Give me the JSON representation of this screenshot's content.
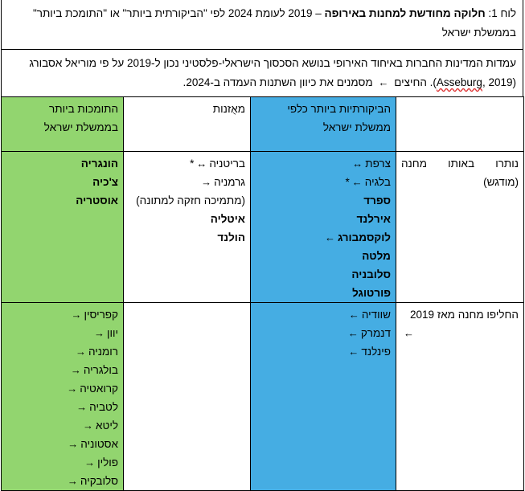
{
  "caption": {
    "prefix": "לוח 1: ",
    "bold": "חלוקה מחודשת למחנות באירופה",
    "rest": " – 2019 לעומת 2024 לפי \"הביקורתית ביותר\" או \"התומכת ביותר\" בממשלת ישראל"
  },
  "note": {
    "part1": "עמדות המדינות החברות באיחוד האירופי בנושא הסכסוך הישראלי-פלסטיני נכון ל-2019 על פי מוריאל אסבורג (",
    "citation": "Asseburg",
    "part2": ", 2019). החיצים",
    "part3": "מסמנים את כיוון השתנות העמדה ב-2024."
  },
  "table": {
    "headers": {
      "critical": "הביקורתיות ביותר כלפי\nממשלת ישראל",
      "balanced": "מאֻזנות",
      "supportive": "התומכות ביותר\nבממשלת ישראל"
    },
    "rows": {
      "same_camp": {
        "label1": "נותרו באותו מחנה",
        "label2": "(מודגש)",
        "critical": [
          {
            "name": "צרפת",
            "bold": false,
            "arrow": "↔",
            "star": false
          },
          {
            "name": "בלגיה",
            "bold": false,
            "arrow": "←",
            "star": true
          },
          {
            "name": "ספרד",
            "bold": true,
            "arrow": "",
            "star": false
          },
          {
            "name": "אירלנד",
            "bold": true,
            "arrow": "",
            "star": false
          },
          {
            "name": "לוקסמבורג",
            "bold": true,
            "arrow": "←",
            "star": false
          },
          {
            "name": "מלטה",
            "bold": true,
            "arrow": "",
            "star": false
          },
          {
            "name": "סלובניה",
            "bold": true,
            "arrow": "",
            "star": false
          },
          {
            "name": "פורטוגל",
            "bold": true,
            "arrow": "",
            "star": false
          }
        ],
        "balanced": [
          {
            "name": "בריטניה",
            "bold": false,
            "arrow": "↔",
            "star": true
          },
          {
            "name": "גרמניה",
            "bold": false,
            "arrow": "→",
            "star": false
          },
          {
            "name": "(מתמיכה חזקה למתונה)",
            "bold": false,
            "arrow": "",
            "star": false
          },
          {
            "name": "איטליה",
            "bold": true,
            "arrow": "",
            "star": false
          },
          {
            "name": "הולנד",
            "bold": true,
            "arrow": "",
            "star": false
          }
        ],
        "supportive": [
          {
            "name": "הונגריה",
            "bold": true,
            "arrow": "",
            "star": false
          },
          {
            "name": "צ'כיה",
            "bold": true,
            "arrow": "",
            "star": false
          },
          {
            "name": "אוסטריה",
            "bold": true,
            "arrow": "",
            "star": false
          }
        ]
      },
      "changed_camp": {
        "label1": "החליפו מחנה מאז 2019",
        "label_arrow": "←",
        "critical": [
          {
            "name": "שוודיה",
            "arrow": "←"
          },
          {
            "name": "דנמרק",
            "arrow": "←"
          },
          {
            "name": "פינלנד",
            "arrow": "←"
          }
        ],
        "supportive": [
          {
            "name": "קפריסין",
            "arrow": "→"
          },
          {
            "name": "יוון",
            "arrow": "→"
          },
          {
            "name": "רומניה",
            "arrow": "→"
          },
          {
            "name": "בולגריה",
            "arrow": "→"
          },
          {
            "name": "קרואטיה",
            "arrow": "→"
          },
          {
            "name": "לטביה",
            "arrow": "→"
          },
          {
            "name": "ליטא",
            "arrow": "→"
          },
          {
            "name": "אסטוניה",
            "arrow": "→"
          },
          {
            "name": "פולין",
            "arrow": "→"
          },
          {
            "name": "סלובקיה",
            "arrow": "→"
          }
        ]
      }
    }
  },
  "colors": {
    "critical": "#45ade3",
    "supportive": "#92d56f"
  }
}
